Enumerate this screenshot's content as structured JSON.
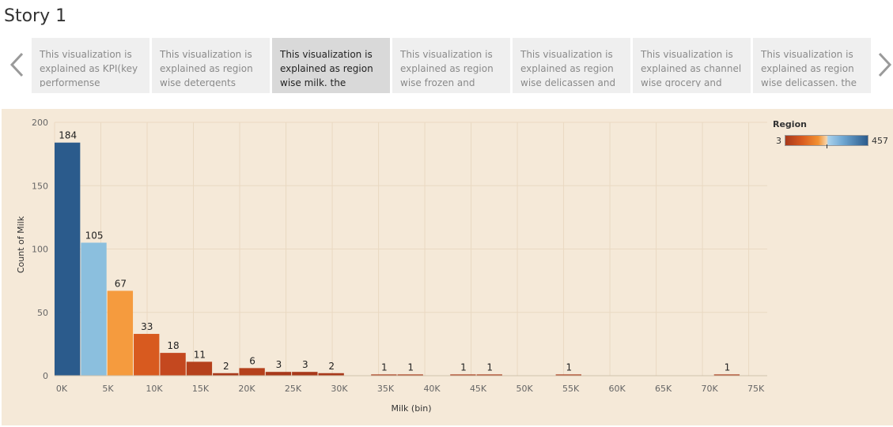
{
  "story": {
    "title": "Story 1"
  },
  "navigation": {
    "prev_icon": "chevron-left-icon",
    "next_icon": "chevron-right-icon"
  },
  "captions": [
    {
      "text": "This visualization is explained as KPI(key performense",
      "active": false
    },
    {
      "text": "This visualization is explained as region wise detergents paper",
      "active": false
    },
    {
      "text": "This visualization is explained as region wise milk. the highest",
      "active": true
    },
    {
      "text": "This visualization is explained as region wise frozen and",
      "active": false
    },
    {
      "text": "This visualization is explained as region wise delicassen and",
      "active": false
    },
    {
      "text": "This visualization is explained as channel wise grocery and",
      "active": false
    },
    {
      "text": "This visualization is explained as region wise delicassen. the",
      "active": false
    }
  ],
  "legend": {
    "title": "Region",
    "min_label": "3",
    "max_label": "457"
  },
  "chart_data": {
    "type": "bar",
    "title": "",
    "xlabel": "Milk (bin)",
    "ylabel": "Count of Milk",
    "bin_width": 2850,
    "xlim": [
      0,
      77000
    ],
    "ylim": [
      0,
      200
    ],
    "x_ticks": [
      0,
      5000,
      10000,
      15000,
      20000,
      25000,
      30000,
      35000,
      40000,
      45000,
      50000,
      55000,
      60000,
      65000,
      70000,
      75000
    ],
    "x_tick_labels": [
      "0K",
      "5K",
      "10K",
      "15K",
      "20K",
      "25K",
      "30K",
      "35K",
      "40K",
      "45K",
      "50K",
      "55K",
      "60K",
      "65K",
      "70K",
      "75K"
    ],
    "y_ticks": [
      0,
      50,
      100,
      150,
      200
    ],
    "y_tick_labels": [
      "0",
      "50",
      "100",
      "150",
      "200"
    ],
    "grid": true,
    "bars": [
      {
        "x": 0,
        "value": 184,
        "color": "#2b5b8c"
      },
      {
        "x": 2850,
        "value": 105,
        "color": "#8bbfde"
      },
      {
        "x": 5700,
        "value": 67,
        "color": "#f59b3e"
      },
      {
        "x": 8550,
        "value": 33,
        "color": "#d85a1f"
      },
      {
        "x": 11400,
        "value": 18,
        "color": "#c4481f"
      },
      {
        "x": 14250,
        "value": 11,
        "color": "#b5411c"
      },
      {
        "x": 17100,
        "value": 2,
        "color": "#a8391b"
      },
      {
        "x": 19950,
        "value": 6,
        "color": "#b5411c"
      },
      {
        "x": 22800,
        "value": 3,
        "color": "#a8391b"
      },
      {
        "x": 25650,
        "value": 3,
        "color": "#a8391b"
      },
      {
        "x": 28500,
        "value": 2,
        "color": "#a8391b"
      },
      {
        "x": 34200,
        "value": 1,
        "color": "#a8391b"
      },
      {
        "x": 37050,
        "value": 1,
        "color": "#a8391b"
      },
      {
        "x": 42750,
        "value": 1,
        "color": "#a8391b"
      },
      {
        "x": 45600,
        "value": 1,
        "color": "#a8391b"
      },
      {
        "x": 54150,
        "value": 1,
        "color": "#a8391b"
      },
      {
        "x": 71250,
        "value": 1,
        "color": "#a8391b"
      }
    ]
  }
}
